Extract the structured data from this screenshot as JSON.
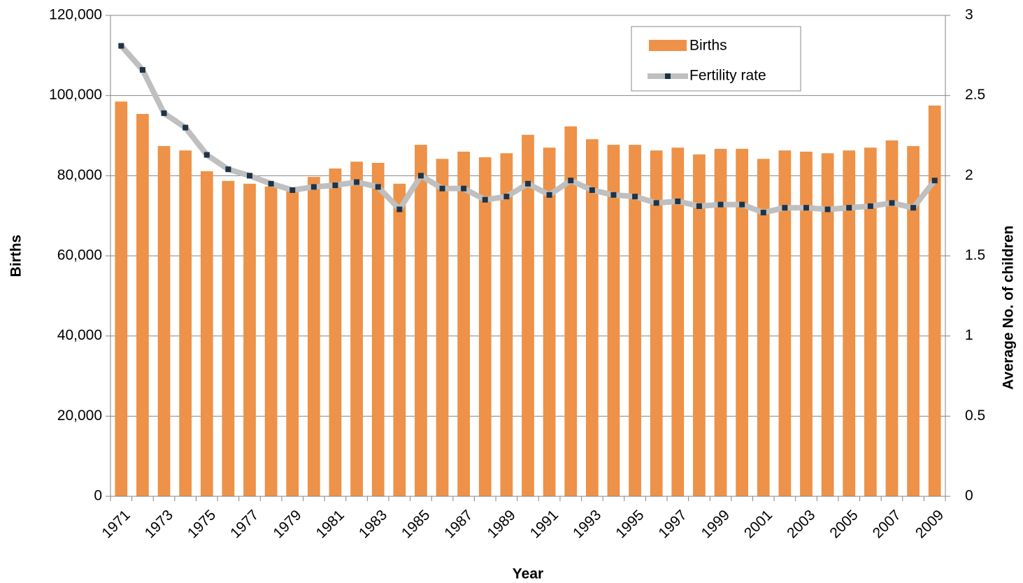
{
  "chart_data": {
    "type": "bar-line",
    "x_label": "Year",
    "y_label": "Births",
    "y2_label": "Average No. of children",
    "categories": [
      "1971",
      null,
      "1973",
      null,
      "1975",
      null,
      "1977",
      null,
      "1979",
      null,
      "1981",
      null,
      "1983",
      null,
      "1985",
      null,
      "1987",
      null,
      "1989",
      null,
      "1991",
      null,
      "1993",
      null,
      "1995",
      null,
      "1997",
      null,
      "1999",
      null,
      "2001",
      null,
      "2003",
      null,
      "2005",
      null,
      "2007",
      null,
      "2009"
    ],
    "series": [
      {
        "name": "Births",
        "type": "bar",
        "color": "#ED9248",
        "values": [
          98500,
          95400,
          87400,
          86300,
          81100,
          78700,
          78000,
          77300,
          76500,
          79700,
          81800,
          83500,
          83200,
          78000,
          87700,
          84200,
          86000,
          84600,
          85600,
          90200,
          87000,
          92300,
          89100,
          87700,
          87700,
          86300,
          87000,
          85300,
          86700,
          86700,
          84200,
          86300,
          86000,
          85600,
          86300,
          87000,
          88800,
          87400,
          97500
        ]
      },
      {
        "name": "Fertility rate",
        "type": "line",
        "axis": "y2",
        "color": "#BFBFBF",
        "marker_color": "#1F3347",
        "values": [
          2.81,
          2.66,
          2.39,
          2.3,
          2.13,
          2.04,
          2.0,
          1.95,
          1.91,
          1.93,
          1.94,
          1.96,
          1.93,
          1.79,
          2.0,
          1.92,
          1.92,
          1.85,
          1.87,
          1.95,
          1.88,
          1.97,
          1.91,
          1.88,
          1.87,
          1.83,
          1.84,
          1.81,
          1.82,
          1.82,
          1.77,
          1.8,
          1.8,
          1.79,
          1.8,
          1.81,
          1.83,
          1.8,
          1.97
        ]
      }
    ],
    "ylim": [
      0,
      120000
    ],
    "yticks": [
      0,
      {
        "value": 20000,
        "label": "20,000"
      },
      {
        "value": 40000,
        "label": "40,000"
      },
      {
        "value": 60000,
        "label": "60,000"
      },
      {
        "value": 80000,
        "label": "80,000"
      },
      {
        "value": 100000,
        "label": "100,000"
      },
      {
        "value": 120000,
        "label": "120,000"
      }
    ],
    "y2lim": [
      0,
      3
    ],
    "y2ticks": [
      0,
      0.5,
      1,
      1.5,
      2,
      2.5,
      3
    ],
    "grid": true,
    "legend": "top-right"
  }
}
